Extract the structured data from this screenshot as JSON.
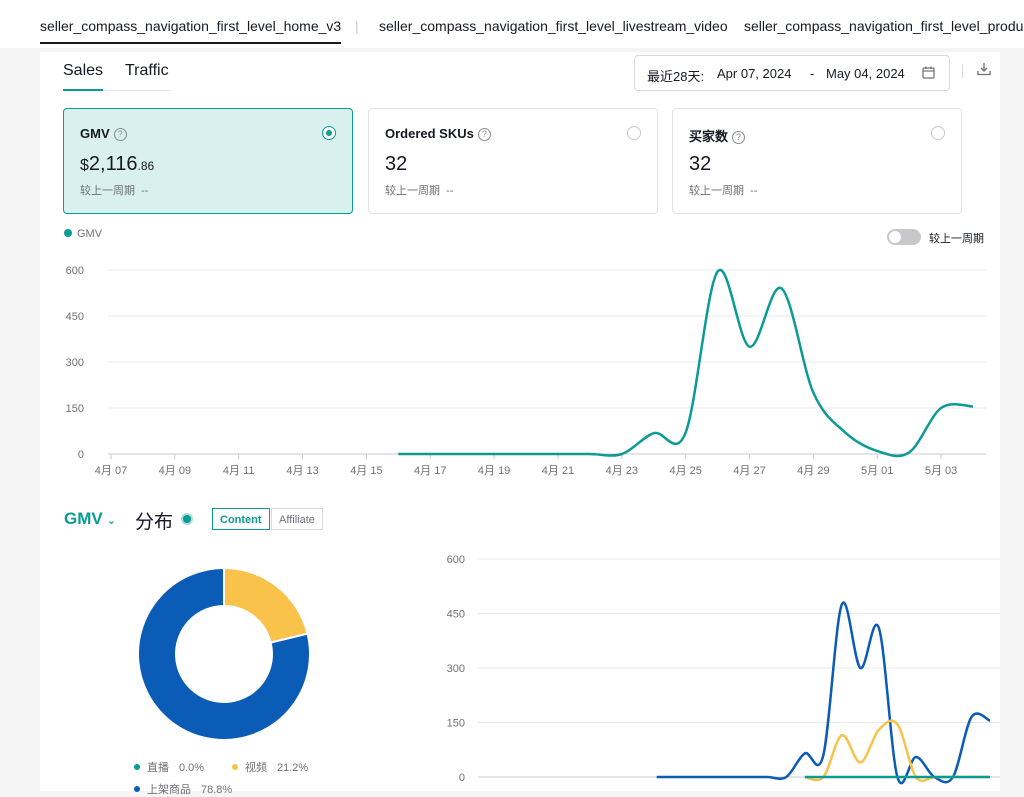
{
  "top_nav": {
    "tabs": [
      {
        "label": "seller_compass_navigation_first_level_home_v3",
        "active": true
      },
      {
        "label": "seller_compass_navigation_first_level_livestream_video",
        "active": false
      },
      {
        "label": "seller_compass_navigation_first_level_product",
        "active": false
      }
    ]
  },
  "sub_tabs": {
    "sales": "Sales",
    "traffic": "Traffic"
  },
  "date_range": {
    "preset": "最近28天:",
    "start": "Apr 07, 2024",
    "sep": "-",
    "end": "May 04, 2024"
  },
  "icons": {
    "calendar": "calendar-icon",
    "download": "download-icon",
    "help": "question-icon"
  },
  "metrics": [
    {
      "title": "GMV",
      "currency": "$",
      "int": "2,116",
      "dec": ".86",
      "compare_label": "较上一周期",
      "compare_value": "--",
      "selected": true
    },
    {
      "title": "Ordered SKUs",
      "value": "32",
      "compare_label": "较上一周期",
      "compare_value": "--",
      "selected": false
    },
    {
      "title": "买家数",
      "value": "32",
      "compare_label": "较上一周期",
      "compare_value": "--",
      "selected": false
    }
  ],
  "legend": {
    "gmv": "GMV"
  },
  "compare_toggle": {
    "label": "较上一周期",
    "on": false
  },
  "colors": {
    "accent": "#0b9b95",
    "blue": "#0b5cb7",
    "yellow": "#f9c24b"
  },
  "chart_data": [
    {
      "type": "line",
      "series": [
        {
          "name": "GMV",
          "x": [
            "2024-04-16",
            "2024-04-17",
            "2024-04-18",
            "2024-04-19",
            "2024-04-20",
            "2024-04-21",
            "2024-04-22",
            "2024-04-23",
            "2024-04-24",
            "2024-04-25",
            "2024-04-26",
            "2024-04-27",
            "2024-04-28",
            "2024-04-29",
            "2024-04-30",
            "2024-05-01",
            "2024-05-02",
            "2024-05-03",
            "2024-05-04"
          ],
          "values": [
            0,
            0,
            0,
            0,
            0,
            0,
            0,
            0,
            68,
            70,
            595,
            350,
            540,
            200,
            70,
            10,
            5,
            150,
            155
          ]
        }
      ],
      "x_tick_labels": [
        "4月 07",
        "4月 09",
        "4月 11",
        "4月 13",
        "4月 15",
        "4月 17",
        "4月 19",
        "4月 21",
        "4月 23",
        "4月 25",
        "4月 27",
        "4月 29",
        "5月 01",
        "5月 03"
      ],
      "y_ticks": [
        0,
        150,
        300,
        450,
        600
      ],
      "ylim": [
        0,
        600
      ],
      "grid": true
    },
    {
      "type": "pie",
      "donut": true,
      "slices": [
        {
          "label": "直播",
          "percent": "0.0%",
          "value": 0.0,
          "color": "#0b9b95"
        },
        {
          "label": "视频",
          "percent": "21.2%",
          "value": 21.2,
          "color": "#f9c24b"
        },
        {
          "label": "上架商品",
          "percent": "78.8%",
          "value": 78.8,
          "color": "#0b5cb7"
        }
      ]
    },
    {
      "type": "line",
      "series": [
        {
          "name": "上架商品",
          "color": "#0b5cb7",
          "x": [
            "2024-04-16",
            "2024-04-17",
            "2024-04-18",
            "2024-04-19",
            "2024-04-20",
            "2024-04-21",
            "2024-04-22",
            "2024-04-23",
            "2024-04-24",
            "2024-04-25",
            "2024-04-26",
            "2024-04-27",
            "2024-04-28",
            "2024-04-29",
            "2024-04-30",
            "2024-05-01",
            "2024-05-02",
            "2024-05-03",
            "2024-05-04"
          ],
          "values": [
            0,
            0,
            0,
            0,
            0,
            0,
            0,
            0,
            65,
            60,
            475,
            300,
            410,
            0,
            55,
            0,
            0,
            165,
            155
          ]
        },
        {
          "name": "视频",
          "color": "#f9c24b",
          "x": [
            "2024-04-24",
            "2024-04-25",
            "2024-04-26",
            "2024-04-27",
            "2024-04-28",
            "2024-04-29",
            "2024-04-30",
            "2024-05-01",
            "2024-05-02",
            "2024-05-03",
            "2024-05-04"
          ],
          "values": [
            0,
            0,
            115,
            40,
            130,
            145,
            0,
            0,
            0,
            0,
            0
          ]
        },
        {
          "name": "直播",
          "color": "#0b9b95",
          "x": [
            "2024-04-24",
            "2024-04-25",
            "2024-04-26",
            "2024-04-27",
            "2024-04-28",
            "2024-04-29",
            "2024-04-30",
            "2024-05-01",
            "2024-05-02",
            "2024-05-03",
            "2024-05-04"
          ],
          "values": [
            0,
            0,
            0,
            0,
            0,
            0,
            0,
            0,
            0,
            0,
            0
          ]
        }
      ],
      "y_ticks": [
        0,
        150,
        300,
        450,
        600
      ],
      "ylim": [
        0,
        600
      ],
      "grid": true
    }
  ],
  "distribution": {
    "metric": "GMV",
    "title": "分布",
    "segments": [
      {
        "label": "Content",
        "active": true
      },
      {
        "label": "Affiliate",
        "active": false
      }
    ]
  }
}
